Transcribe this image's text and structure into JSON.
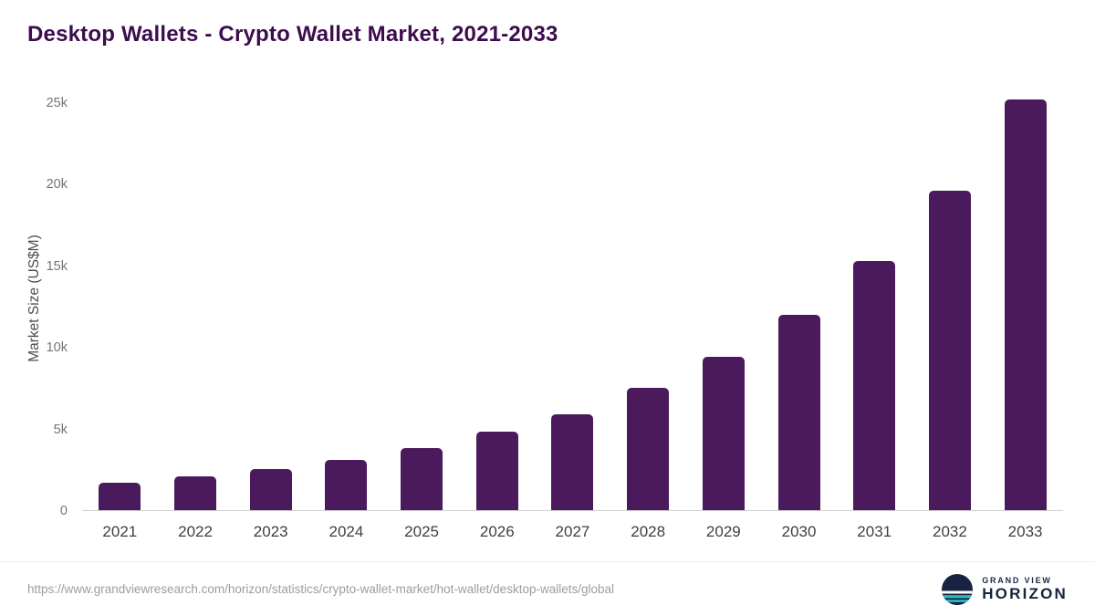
{
  "chart_data": {
    "type": "bar",
    "title": "Desktop Wallets - Crypto Wallet Market, 2021-2033",
    "xlabel": "",
    "ylabel": "Market Size (US$M)",
    "categories": [
      "2021",
      "2022",
      "2023",
      "2024",
      "2025",
      "2026",
      "2027",
      "2028",
      "2029",
      "2030",
      "2031",
      "2032",
      "2033"
    ],
    "values": [
      1700,
      2100,
      2500,
      3100,
      3800,
      4800,
      5900,
      7500,
      9400,
      12000,
      15300,
      19600,
      25200
    ],
    "ylim": [
      0,
      26000
    ],
    "yticks": [
      {
        "value": 0,
        "label": "0"
      },
      {
        "value": 5000,
        "label": "5k"
      },
      {
        "value": 10000,
        "label": "10k"
      },
      {
        "value": 15000,
        "label": "15k"
      },
      {
        "value": 20000,
        "label": "20k"
      },
      {
        "value": 25000,
        "label": "25k"
      }
    ],
    "bar_color": "#4a1a5c",
    "grid": false,
    "legend": false
  },
  "footer": {
    "source_url": "https://www.grandviewresearch.com/horizon/statistics/crypto-wallet-market/hot-wallet/desktop-wallets/global",
    "logo": {
      "line1": "GRAND VIEW",
      "line2": "HORIZON",
      "icon": "horizon-circle-icon",
      "navy": "#17233f",
      "teal": "#2fbdc4"
    }
  }
}
